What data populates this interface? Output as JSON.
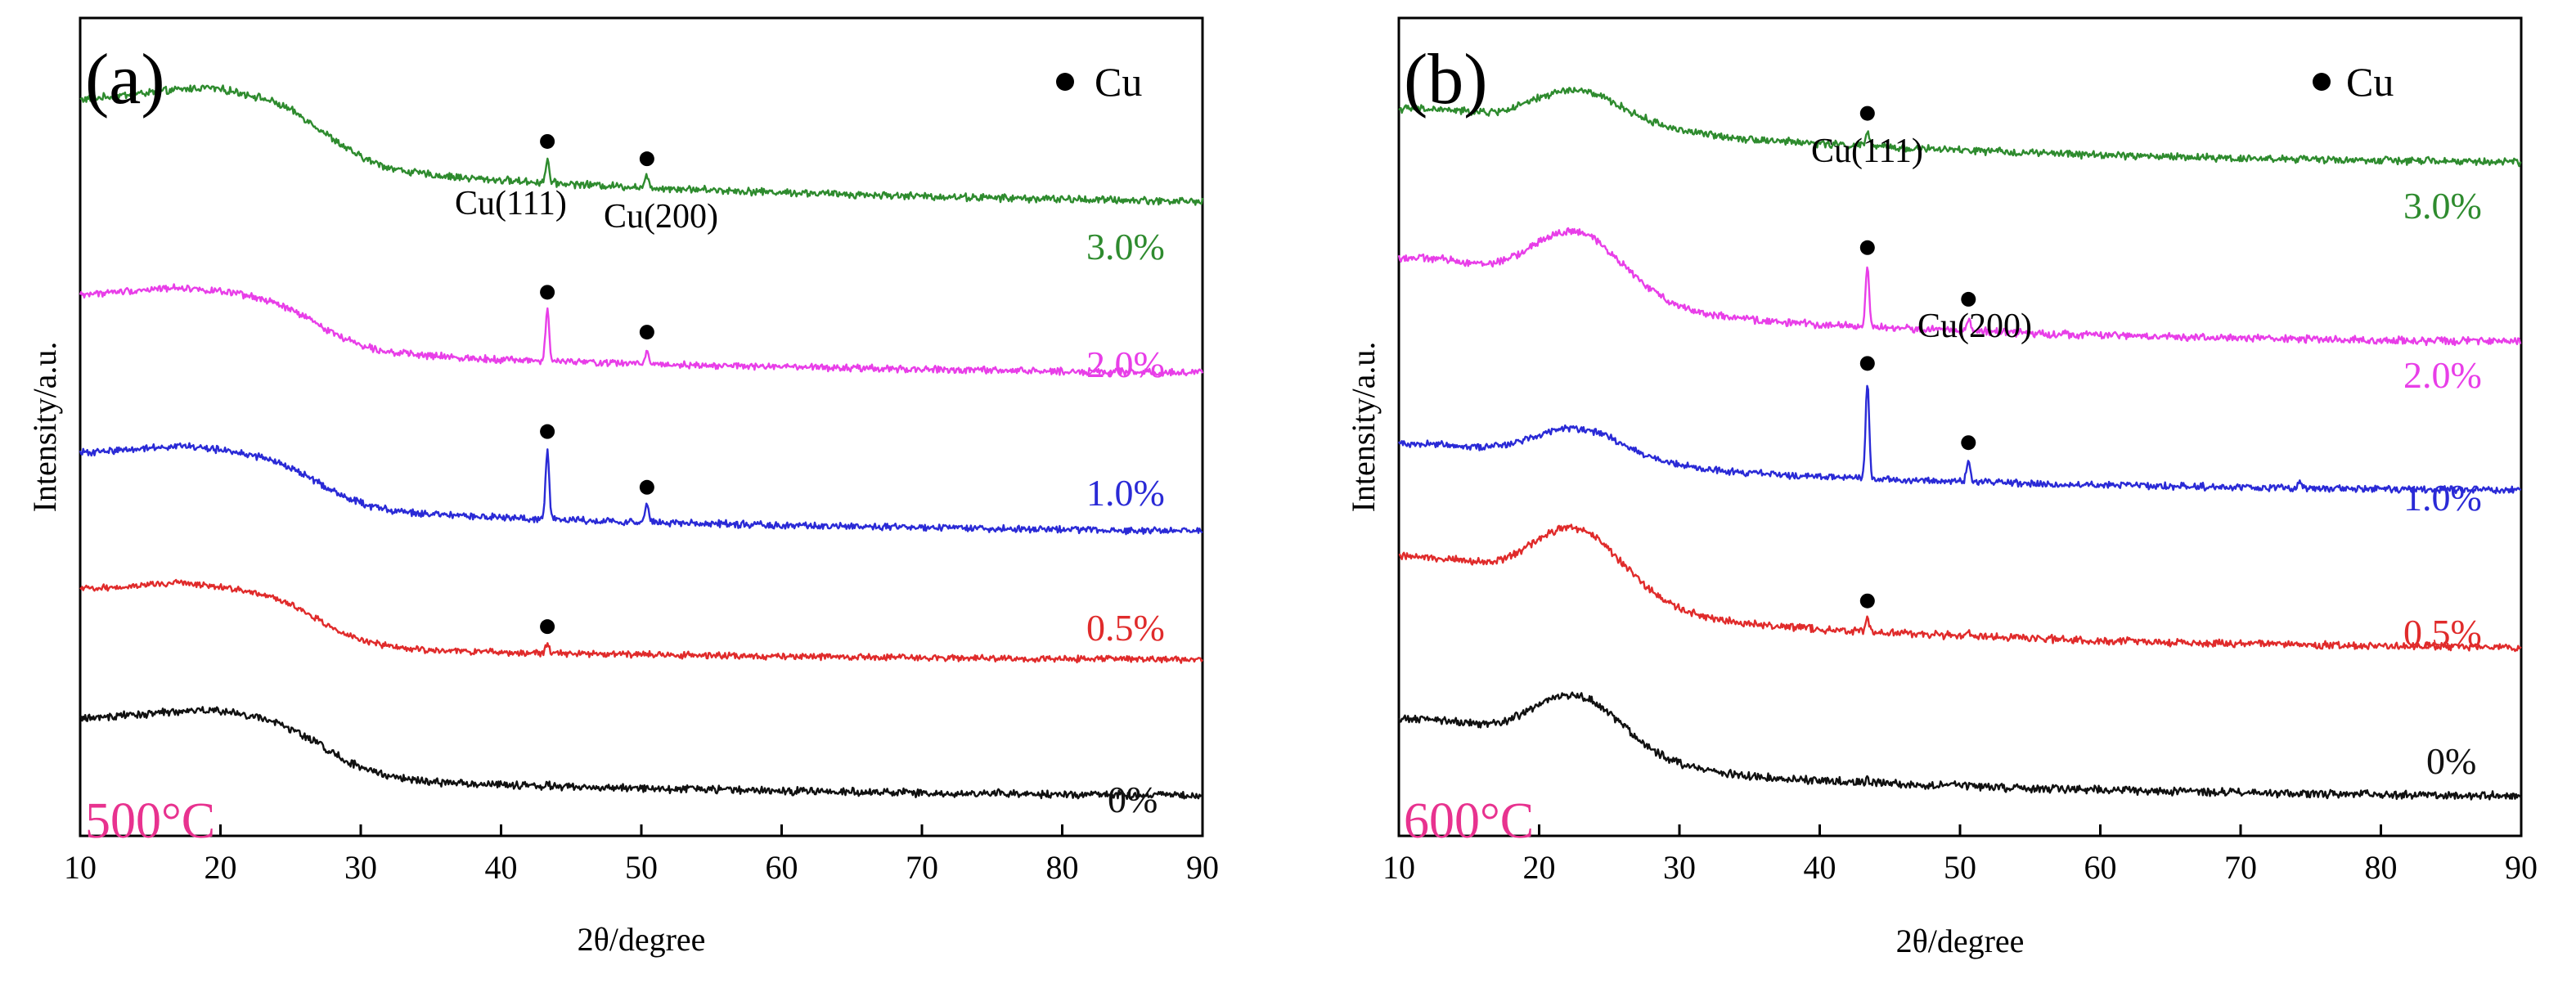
{
  "chart_data": [
    {
      "type": "line",
      "panel_label": "(a)",
      "temperature_label": "500°C",
      "xlabel": "2θ/degree",
      "ylabel": "Intensity/a.u.",
      "xlim": [
        10,
        90
      ],
      "xticks": [
        10,
        20,
        30,
        40,
        50,
        60,
        70,
        80,
        90
      ],
      "legend": {
        "marker": "●",
        "label": "Cu",
        "position": "top-right"
      },
      "peak_annotations": [
        {
          "label": "Cu(111)",
          "x": 43.3
        },
        {
          "label": "Cu(200)",
          "x": 50.4
        }
      ],
      "series": [
        {
          "name": "3.0%",
          "color": "#2e8b2e",
          "baseline": 5.6,
          "shape": "step",
          "bump_amp": 1.15,
          "bump_center": 19.0,
          "edge": 27.5,
          "tail": 0.35,
          "noise": 0.028,
          "peaks": [
            {
              "x": 43.3,
              "h": 0.22
            },
            {
              "x": 50.4,
              "h": 0.1
            }
          ]
        },
        {
          "name": "2.0%",
          "color": "#e83ee8",
          "baseline": 4.0,
          "shape": "step",
          "bump_amp": 0.85,
          "bump_center": 17.0,
          "edge": 27.0,
          "tail": 0.22,
          "noise": 0.026,
          "peaks": [
            {
              "x": 43.3,
              "h": 0.48
            },
            {
              "x": 50.4,
              "h": 0.13
            }
          ]
        },
        {
          "name": "1.0%",
          "color": "#2a2ad6",
          "baseline": 2.5,
          "shape": "step",
          "bump_amp": 0.85,
          "bump_center": 17.0,
          "edge": 27.0,
          "tail": 0.22,
          "noise": 0.026,
          "peaks": [
            {
              "x": 43.3,
              "h": 0.66
            },
            {
              "x": 50.4,
              "h": 0.16
            }
          ]
        },
        {
          "name": "0.5%",
          "color": "#e02b2b",
          "baseline": 1.3,
          "shape": "step",
          "bump_amp": 0.75,
          "bump_center": 17.0,
          "edge": 27.0,
          "tail": 0.12,
          "noise": 0.024,
          "peaks": [
            {
              "x": 43.3,
              "h": 0.08
            }
          ]
        },
        {
          "name": "0%",
          "color": "#111111",
          "baseline": 0.0,
          "shape": "step",
          "bump_amp": 0.85,
          "bump_center": 19.0,
          "edge": 27.5,
          "tail": 0.18,
          "noise": 0.03,
          "peaks": []
        }
      ],
      "series_label_positions": [
        "3.0%",
        "2.0%",
        "1.0%",
        "0.5%",
        "0%"
      ]
    },
    {
      "type": "line",
      "panel_label": "(b)",
      "temperature_label": "600°C",
      "xlabel": "2θ/degree",
      "ylabel": "Intensity/a.u.",
      "xlim": [
        10,
        90
      ],
      "xticks": [
        10,
        20,
        30,
        40,
        50,
        60,
        70,
        80,
        90
      ],
      "legend": {
        "marker": "●",
        "label": "Cu",
        "position": "top-right"
      },
      "peak_annotations": [
        {
          "label": "Cu(111)",
          "x": 43.4
        },
        {
          "label": "Cu(200)",
          "x": 50.6
        }
      ],
      "series": [
        {
          "name": "3.0%",
          "color": "#2e8b2e",
          "baseline": 6.0,
          "shape": "hump",
          "bump_amp": 0.75,
          "bump_center": 23.0,
          "edge": 27.0,
          "tail": 0.3,
          "noise": 0.028,
          "peaks": [
            {
              "x": 43.4,
              "h": 0.14
            }
          ]
        },
        {
          "name": "2.0%",
          "color": "#e83ee8",
          "baseline": 4.3,
          "shape": "hump",
          "bump_amp": 1.15,
          "bump_center": 23.0,
          "edge": 27.0,
          "tail": 0.28,
          "noise": 0.028,
          "peaks": [
            {
              "x": 43.4,
              "h": 0.58
            },
            {
              "x": 50.6,
              "h": 0.13
            }
          ]
        },
        {
          "name": "1.0%",
          "color": "#2a2ad6",
          "baseline": 2.9,
          "shape": "hump",
          "bump_amp": 0.65,
          "bump_center": 23.0,
          "edge": 27.0,
          "tail": 0.22,
          "noise": 0.026,
          "peaks": [
            {
              "x": 43.4,
              "h": 0.92
            },
            {
              "x": 50.6,
              "h": 0.2
            },
            {
              "x": 74.2,
              "h": 0.06
            }
          ]
        },
        {
          "name": "0.5%",
          "color": "#e02b2b",
          "baseline": 1.4,
          "shape": "hump",
          "bump_amp": 1.25,
          "bump_center": 23.0,
          "edge": 27.0,
          "tail": 0.3,
          "noise": 0.028,
          "peaks": [
            {
              "x": 43.4,
              "h": 0.12
            },
            {
              "x": 50.6,
              "h": 0.03
            }
          ]
        },
        {
          "name": "0%",
          "color": "#111111",
          "baseline": 0.0,
          "shape": "hump",
          "bump_amp": 1.05,
          "bump_center": 23.0,
          "edge": 27.0,
          "tail": 0.25,
          "noise": 0.03,
          "peaks": [
            {
              "x": 43.4,
              "h": 0.03
            }
          ]
        }
      ]
    }
  ]
}
